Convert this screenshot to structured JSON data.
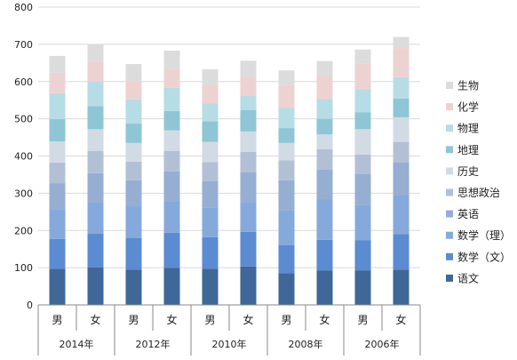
{
  "chart_data": {
    "type": "bar",
    "stacked": true,
    "title": "",
    "xlabel": "",
    "ylabel": "",
    "ylim": [
      0,
      800
    ],
    "yticks": [
      0,
      100,
      200,
      300,
      400,
      500,
      600,
      700,
      800
    ],
    "grid": true,
    "legend_position": "right",
    "categories": [
      "男",
      "女",
      "男",
      "女",
      "男",
      "女",
      "男",
      "女",
      "男",
      "女"
    ],
    "groups": [
      {
        "label": "2014年",
        "members": [
          0,
          1
        ]
      },
      {
        "label": "2012年",
        "members": [
          2,
          3
        ]
      },
      {
        "label": "2010年",
        "members": [
          4,
          5
        ]
      },
      {
        "label": "2008年",
        "members": [
          6,
          7
        ]
      },
      {
        "label": "2006年",
        "members": [
          8,
          9
        ]
      }
    ],
    "series": [
      {
        "name": "语文",
        "color": "#3f6797",
        "values": [
          97,
          101,
          95,
          99,
          97,
          103,
          85,
          92,
          92,
          95
        ]
      },
      {
        "name": "数学（文）",
        "color": "#5b8bd0",
        "values": [
          80,
          90,
          85,
          95,
          85,
          93,
          75,
          83,
          82,
          95
        ]
      },
      {
        "name": "数学（理）",
        "color": "#86a9dc",
        "values": [
          80,
          85,
          85,
          85,
          80,
          80,
          95,
          108,
          95,
          105
        ]
      },
      {
        "name": "英语",
        "color": "#96aed2",
        "values": [
          70,
          78,
          70,
          80,
          70,
          80,
          80,
          80,
          83,
          88
        ]
      },
      {
        "name": "思想政治",
        "color": "#b2c0d6",
        "values": [
          55,
          60,
          50,
          55,
          52,
          55,
          53,
          55,
          52,
          55
        ]
      },
      {
        "name": "历史",
        "color": "#d2dae4",
        "values": [
          57,
          58,
          50,
          55,
          54,
          55,
          47,
          40,
          68,
          66
        ]
      },
      {
        "name": "地理",
        "color": "#8ec6d5",
        "values": [
          60,
          62,
          52,
          52,
          55,
          57,
          40,
          42,
          45,
          50
        ]
      },
      {
        "name": "物理",
        "color": "#b6dde6",
        "values": [
          70,
          66,
          65,
          62,
          48,
          40,
          55,
          53,
          62,
          58
        ]
      },
      {
        "name": "化学",
        "color": "#edd2d2",
        "values": [
          55,
          53,
          48,
          50,
          50,
          50,
          60,
          62,
          70,
          78
        ]
      },
      {
        "name": "生物",
        "color": "#dcdcdc",
        "values": [
          45,
          48,
          47,
          50,
          42,
          43,
          40,
          40,
          37,
          30
        ]
      }
    ]
  }
}
